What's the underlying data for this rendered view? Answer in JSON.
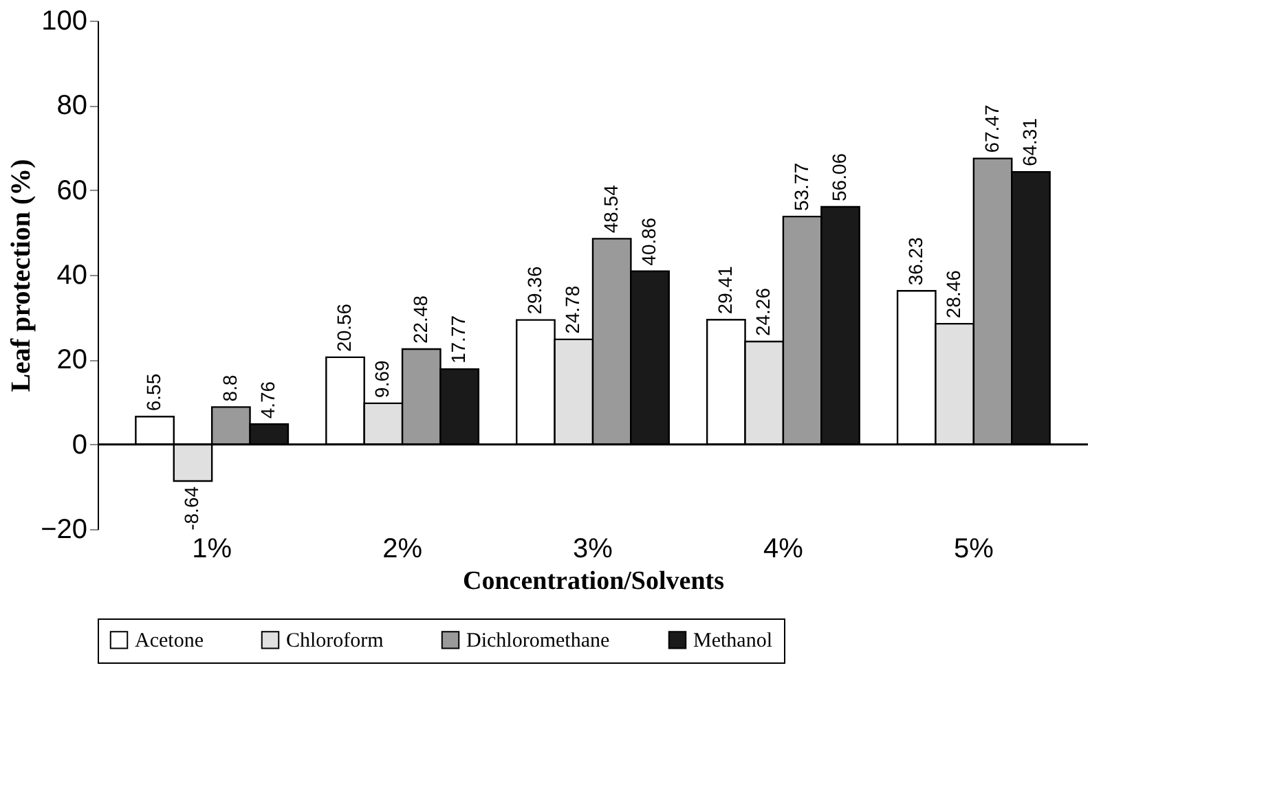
{
  "chart_data": {
    "type": "bar",
    "xlabel": "Concentration/Solvents",
    "ylabel": "Leaf protection (%)",
    "categories": [
      "1%",
      "2%",
      "3%",
      "4%",
      "5%"
    ],
    "series": [
      {
        "name": "Acetone",
        "color": "#ffffff",
        "values": [
          6.55,
          20.56,
          29.36,
          29.41,
          36.23
        ]
      },
      {
        "name": "Chloroform",
        "color": "#e0e0e0",
        "values": [
          -8.64,
          9.69,
          24.78,
          24.26,
          28.46
        ]
      },
      {
        "name": "Dichloromethane",
        "color": "#9a9a9a",
        "values": [
          8.8,
          22.48,
          48.54,
          53.77,
          67.47
        ]
      },
      {
        "name": "Methanol",
        "color": "#1a1a1a",
        "values": [
          4.76,
          17.77,
          40.86,
          56.06,
          64.31
        ]
      }
    ],
    "ylim": [
      -20,
      100
    ],
    "yticks": [
      -20,
      0,
      20,
      40,
      60,
      80,
      100
    ],
    "ref_lines": [
      {
        "axis": "y",
        "value": 0,
        "color": "#000000"
      }
    ],
    "data_labels": true,
    "grid": false,
    "legend": "bottom"
  }
}
